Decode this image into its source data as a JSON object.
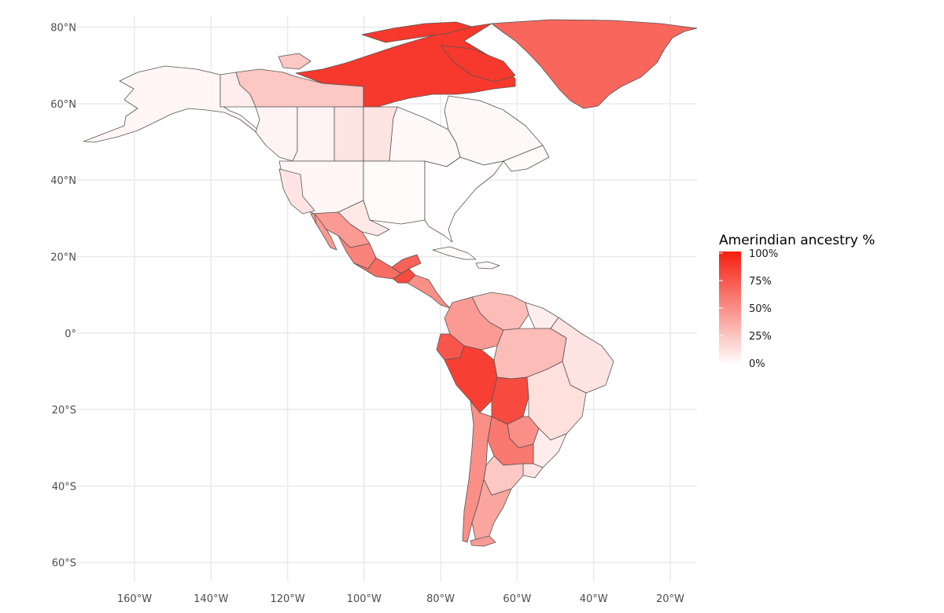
{
  "map": {
    "legend": {
      "title": "Amerindian ancestry %",
      "breaks": [
        {
          "label": "100%",
          "value": 100
        },
        {
          "label": "75%",
          "value": 75
        },
        {
          "label": "50%",
          "value": 50
        },
        {
          "label": "25%",
          "value": 25
        },
        {
          "label": "0%",
          "value": 0
        }
      ],
      "low_color": "#ffffff",
      "high_color": "#f51e0f",
      "position": "right"
    },
    "axes": {
      "lon_ticks": [
        {
          "label": "160°W",
          "value": -160
        },
        {
          "label": "140°W",
          "value": -140
        },
        {
          "label": "120°W",
          "value": -120
        },
        {
          "label": "100°W",
          "value": -100
        },
        {
          "label": "80°W",
          "value": -80
        },
        {
          "label": "60°W",
          "value": -60
        },
        {
          "label": "40°W",
          "value": -40
        },
        {
          "label": "20°W",
          "value": -20
        }
      ],
      "lat_ticks": [
        {
          "label": "80°N",
          "value": 80
        },
        {
          "label": "60°N",
          "value": 60
        },
        {
          "label": "40°N",
          "value": 40
        },
        {
          "label": "20°N",
          "value": 20
        },
        {
          "label": "0°",
          "value": 0
        },
        {
          "label": "20°S",
          "value": -20
        },
        {
          "label": "40°S",
          "value": -40
        },
        {
          "label": "60°S",
          "value": -60
        }
      ],
      "lon_range": [
        -175,
        -13
      ],
      "lat_range": [
        -65,
        83
      ],
      "grid": true
    },
    "regions": [
      {
        "name": "alaska",
        "value": 4
      },
      {
        "name": "yukon",
        "value": 8
      },
      {
        "name": "northwest-territories",
        "value": 25
      },
      {
        "name": "nunavut",
        "value": 88
      },
      {
        "name": "greenland",
        "value": 68
      },
      {
        "name": "british-columbia",
        "value": 5
      },
      {
        "name": "alberta",
        "value": 5
      },
      {
        "name": "saskatchewan",
        "value": 12
      },
      {
        "name": "manitoba",
        "value": 12
      },
      {
        "name": "ontario",
        "value": 3
      },
      {
        "name": "quebec",
        "value": 3
      },
      {
        "name": "atlantic-canada",
        "value": 2
      },
      {
        "name": "united-states-west",
        "value": 4
      },
      {
        "name": "united-states-central",
        "value": 2
      },
      {
        "name": "united-states-east",
        "value": 1
      },
      {
        "name": "california",
        "value": 12
      },
      {
        "name": "texas-south",
        "value": 10
      },
      {
        "name": "mexico-north",
        "value": 45
      },
      {
        "name": "mexico-central",
        "value": 55
      },
      {
        "name": "mexico-south",
        "value": 65
      },
      {
        "name": "yucatan",
        "value": 70
      },
      {
        "name": "guatemala",
        "value": 80
      },
      {
        "name": "central-america",
        "value": 50
      },
      {
        "name": "cuba",
        "value": 2
      },
      {
        "name": "hispaniola",
        "value": 3
      },
      {
        "name": "venezuela",
        "value": 30
      },
      {
        "name": "colombia",
        "value": 45
      },
      {
        "name": "ecuador",
        "value": 75
      },
      {
        "name": "peru",
        "value": 85
      },
      {
        "name": "bolivia",
        "value": 80
      },
      {
        "name": "guianas",
        "value": 8
      },
      {
        "name": "amazonas-brazil",
        "value": 30
      },
      {
        "name": "brazil-northeast",
        "value": 12
      },
      {
        "name": "brazil-central",
        "value": 14
      },
      {
        "name": "brazil-south",
        "value": 8
      },
      {
        "name": "paraguay",
        "value": 50
      },
      {
        "name": "argentina-north",
        "value": 60
      },
      {
        "name": "argentina-center",
        "value": 25
      },
      {
        "name": "uruguay",
        "value": 12
      },
      {
        "name": "chile",
        "value": 50
      },
      {
        "name": "patagonia",
        "value": 40
      },
      {
        "name": "tierra-del-fuego",
        "value": 45
      }
    ]
  }
}
